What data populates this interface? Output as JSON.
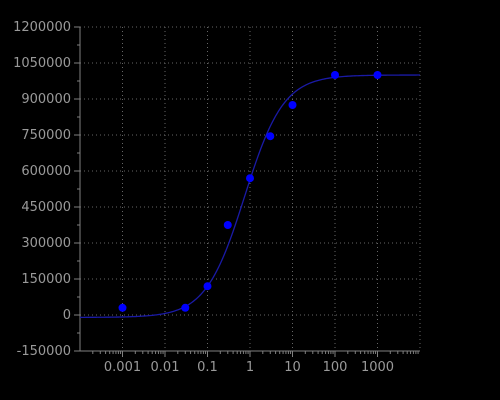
{
  "chart_data": {
    "type": "scatter",
    "title": "",
    "xlabel": "",
    "ylabel": "",
    "x_scale": "log",
    "xlim": [
      0.0001,
      10000
    ],
    "ylim": [
      -150000,
      1200000
    ],
    "grid": true,
    "x_ticks": [
      0.001,
      0.01,
      0.1,
      1,
      10,
      100,
      1000
    ],
    "x_tick_labels": [
      "0.001",
      "0.01",
      "0.1",
      "1",
      "10",
      "100",
      "1000"
    ],
    "y_ticks": [
      -150000,
      0,
      150000,
      300000,
      450000,
      600000,
      750000,
      900000,
      1050000,
      1200000
    ],
    "y_tick_labels": [
      "-150000",
      "0",
      "150000",
      "300000",
      "450000",
      "600000",
      "750000",
      "900000",
      "1050000",
      "1200000"
    ],
    "series": [
      {
        "type": "scatter",
        "x": [
          0.001,
          0.03,
          0.1,
          0.3,
          1,
          3,
          10,
          100,
          1000
        ],
        "y": [
          30000,
          30000,
          120000,
          375000,
          570000,
          745000,
          875000,
          1000000,
          1000000
        ]
      }
    ],
    "fit_curve": {
      "type": "four-parameter logistic",
      "bottom": -10000,
      "top": 1000000,
      "ec50": 0.75,
      "hill": 0.95
    },
    "colors": {
      "background": "#000000",
      "points": "#0000ff",
      "curve": "#1a1aa6",
      "axes": "#808080",
      "grid": "#666666",
      "tick_text": "#9a9a9a"
    }
  }
}
